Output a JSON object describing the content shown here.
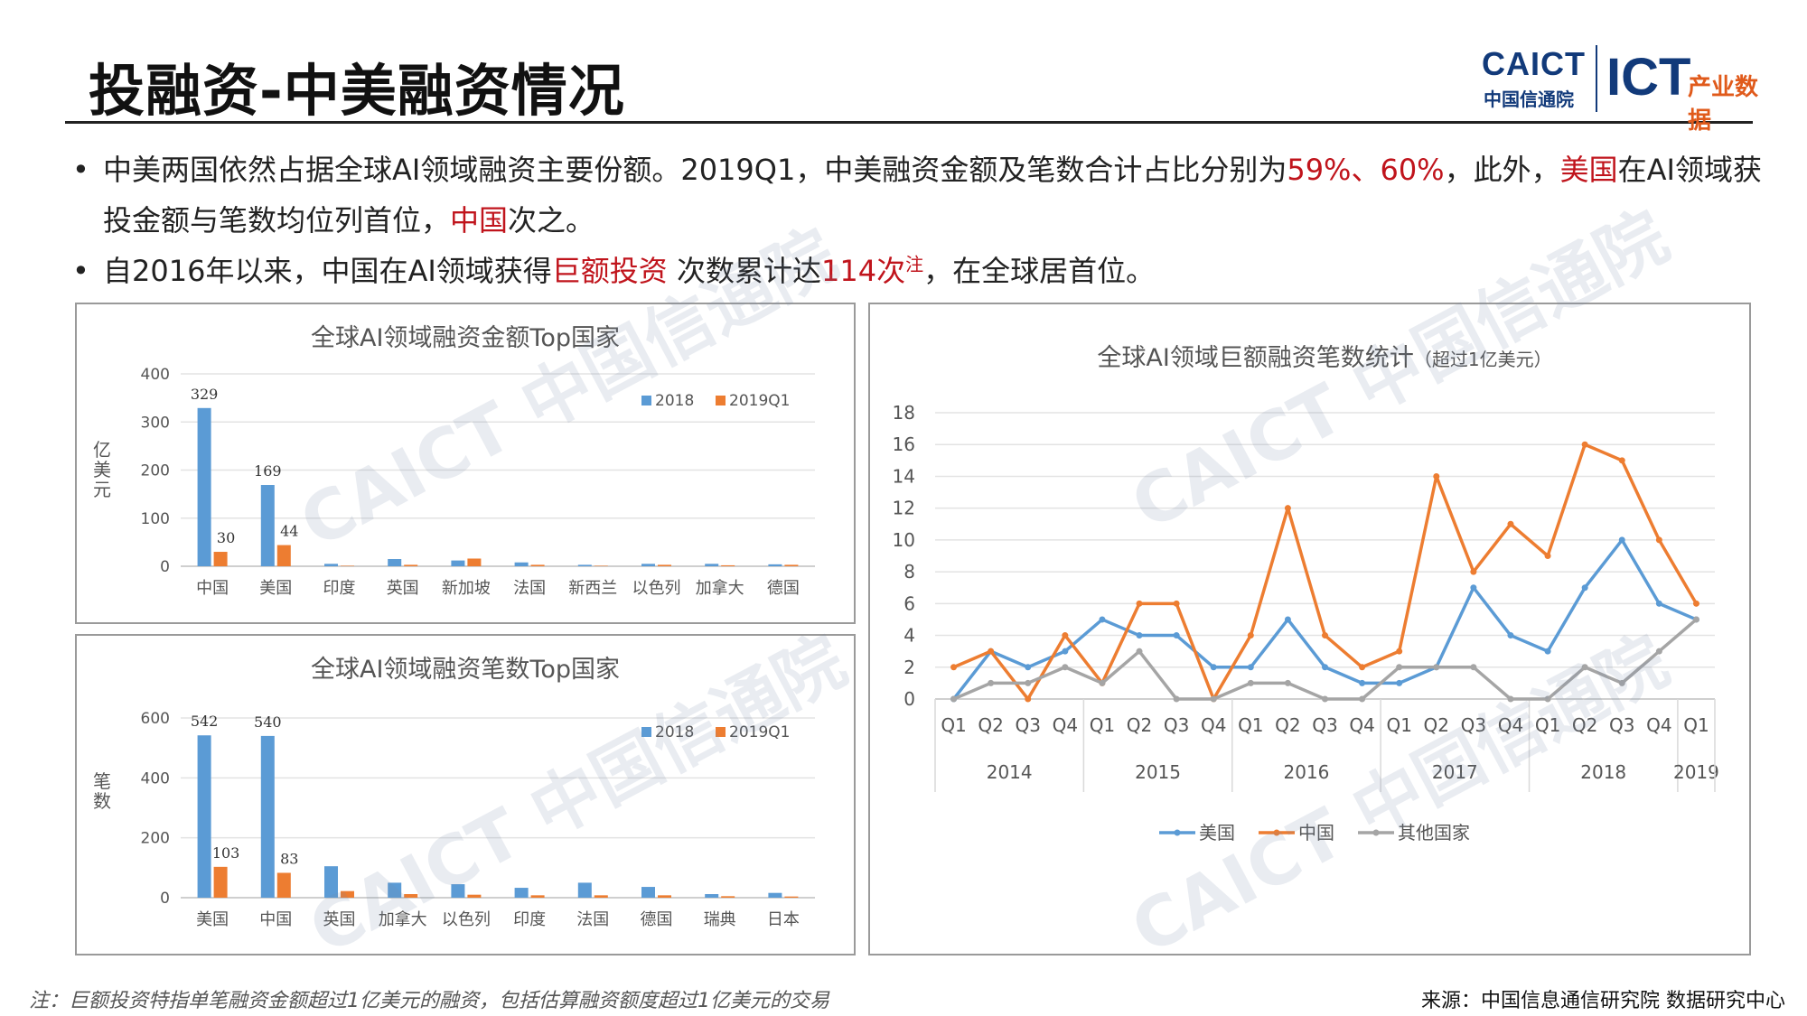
{
  "header": {
    "title": "投融资-中美融资情况"
  },
  "logo": {
    "caict": "CAICT",
    "caict_cn": "中国信通院",
    "ict": "ICT",
    "data": "产业数据"
  },
  "bullets": {
    "b1_part1": "中美两国依然占据全球AI领域融资主要份额。2019Q1，中美融资金额及笔数合计占比分别为",
    "b1_pct": "59%、60%",
    "b1_part2": "，此外，",
    "b1_us": "美国",
    "b1_part3": "在AI领域获投金额与笔数均位列首位，",
    "b1_cn": "中国",
    "b1_part4": "次之。",
    "b2_part1": "自2016年以来，中国在AI领域获得",
    "b2_red1": "巨额投资",
    "b2_part2": " 次数累计达",
    "b2_red2": "114次",
    "b2_sup": "注",
    "b2_part3": "，在全球居首位。"
  },
  "watermark": "CAICT 中国信通院",
  "footer": {
    "note": "注：巨额投资特指单笔融资金额超过1亿美元的融资，包括估算融资额度超过1亿美元的交易",
    "source": "来源：中国信息通信研究院 数据研究中心"
  },
  "colors": {
    "blue": "#5b9bd5",
    "orange": "#ed7d31",
    "gray": "#a5a5a5",
    "red": "#c0141c"
  },
  "chart_data": [
    {
      "id": "amount",
      "type": "bar",
      "title": "全球AI领域融资金额Top国家",
      "ylabel": "亿美元",
      "ylim": [
        0,
        400
      ],
      "yticks": [
        0,
        100,
        200,
        300,
        400
      ],
      "categories": [
        "中国",
        "美国",
        "印度",
        "英国",
        "新加坡",
        "法国",
        "新西兰",
        "以色列",
        "加拿大",
        "德国"
      ],
      "series": [
        {
          "name": "2018",
          "values": [
            329,
            169,
            5,
            15,
            12,
            8,
            3,
            5,
            5,
            4
          ]
        },
        {
          "name": "2019Q1",
          "values": [
            30,
            44,
            1,
            3,
            16,
            3,
            1,
            3,
            2,
            3
          ]
        }
      ],
      "data_labels": [
        {
          "series": 0,
          "index": 0,
          "text": "329"
        },
        {
          "series": 0,
          "index": 1,
          "text": "169"
        },
        {
          "series": 1,
          "index": 0,
          "text": "30"
        },
        {
          "series": 1,
          "index": 1,
          "text": "44"
        }
      ],
      "legend": "top-right",
      "grid": true
    },
    {
      "id": "count",
      "type": "bar",
      "title": "全球AI领域融资笔数Top国家",
      "ylabel": "笔数",
      "ylim": [
        0,
        600
      ],
      "yticks": [
        0,
        200,
        400,
        600
      ],
      "categories": [
        "美国",
        "中国",
        "英国",
        "加拿大",
        "以色列",
        "印度",
        "法国",
        "德国",
        "瑞典",
        "日本"
      ],
      "series": [
        {
          "name": "2018",
          "values": [
            542,
            540,
            105,
            50,
            45,
            33,
            50,
            36,
            12,
            16
          ]
        },
        {
          "name": "2019Q1",
          "values": [
            103,
            83,
            22,
            12,
            10,
            8,
            8,
            8,
            5,
            4
          ]
        }
      ],
      "data_labels": [
        {
          "series": 0,
          "index": 0,
          "text": "542"
        },
        {
          "series": 0,
          "index": 1,
          "text": "540"
        },
        {
          "series": 1,
          "index": 0,
          "text": "103"
        },
        {
          "series": 1,
          "index": 1,
          "text": "83"
        }
      ],
      "legend": "top-right",
      "grid": true
    },
    {
      "id": "mega",
      "type": "line",
      "title": "全球AI领域巨额融资笔数统计",
      "subtitle": "（超过1亿美元）",
      "ylim": [
        0,
        18
      ],
      "yticks": [
        0,
        2,
        4,
        6,
        8,
        10,
        12,
        14,
        16,
        18
      ],
      "x": [
        "Q1",
        "Q2",
        "Q3",
        "Q4",
        "Q1",
        "Q2",
        "Q3",
        "Q4",
        "Q1",
        "Q2",
        "Q3",
        "Q4",
        "Q1",
        "Q2",
        "Q3",
        "Q4",
        "Q1",
        "Q2",
        "Q3",
        "Q4",
        "Q1"
      ],
      "year_groups": [
        {
          "label": "2014",
          "count": 4
        },
        {
          "label": "2015",
          "count": 4
        },
        {
          "label": "2016",
          "count": 4
        },
        {
          "label": "2017",
          "count": 4
        },
        {
          "label": "2018",
          "count": 4
        },
        {
          "label": "2019",
          "count": 1
        }
      ],
      "series": [
        {
          "name": "美国",
          "color": "#5b9bd5",
          "values": [
            0,
            3,
            2,
            3,
            5,
            4,
            4,
            2,
            2,
            5,
            2,
            1,
            1,
            2,
            7,
            4,
            3,
            7,
            10,
            6,
            5
          ]
        },
        {
          "name": "中国",
          "color": "#ed7d31",
          "values": [
            2,
            3,
            0,
            4,
            1,
            6,
            6,
            0,
            4,
            12,
            4,
            2,
            3,
            14,
            8,
            11,
            9,
            16,
            15,
            10,
            6
          ]
        },
        {
          "name": "其他国家",
          "color": "#a5a5a5",
          "values": [
            0,
            1,
            1,
            2,
            1,
            3,
            0,
            0,
            1,
            1,
            0,
            0,
            2,
            2,
            2,
            0,
            0,
            2,
            1,
            3,
            5
          ]
        }
      ],
      "legend": "bottom",
      "grid": true
    }
  ]
}
